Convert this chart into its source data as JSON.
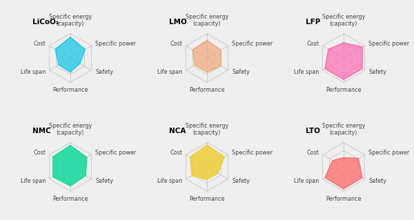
{
  "charts": [
    {
      "title": "LiCoO₂",
      "fill_color": "#1EC8E8",
      "fill_alpha": 0.75,
      "values": [
        0.85,
        0.7,
        0.45,
        0.58,
        0.55,
        0.72
      ],
      "col": 0,
      "row": 0
    },
    {
      "title": "LMO",
      "fill_color": "#F0A878",
      "fill_alpha": 0.68,
      "values": [
        0.72,
        0.65,
        0.65,
        0.58,
        0.58,
        0.68
      ],
      "col": 1,
      "row": 0
    },
    {
      "title": "LFP",
      "fill_color": "#FF6EB4",
      "fill_alpha": 0.72,
      "values": [
        0.62,
        0.9,
        0.88,
        0.88,
        0.88,
        0.72
      ],
      "col": 2,
      "row": 0
    },
    {
      "title": "NMC",
      "fill_color": "#1DD9A0",
      "fill_alpha": 0.9,
      "values": [
        0.88,
        0.78,
        0.72,
        0.78,
        0.82,
        0.82
      ],
      "col": 0,
      "row": 1
    },
    {
      "title": "NCA",
      "fill_color": "#EED040",
      "fill_alpha": 0.88,
      "values": [
        0.9,
        0.82,
        0.52,
        0.52,
        0.72,
        0.8
      ],
      "col": 1,
      "row": 1
    },
    {
      "title": "LTO",
      "fill_color": "#FF7070",
      "fill_alpha": 0.78,
      "values": [
        0.38,
        0.7,
        0.88,
        0.9,
        0.88,
        0.52
      ],
      "col": 2,
      "row": 1
    }
  ],
  "grid_levels": [
    0.333,
    0.667,
    1.0
  ],
  "grid_color": "#cccccc",
  "grid_linewidth": 0.7,
  "data_linewidth": 0.8,
  "background_color": "#efefef",
  "title_fontsize": 7.5,
  "label_fontsize": 5.8,
  "cat_labels": [
    "Specific energy\n(capacity)",
    "Specific power",
    "Safety",
    "Performance",
    "Life span",
    "Cost"
  ],
  "haligns": [
    "center",
    "left",
    "left",
    "center",
    "right",
    "right"
  ],
  "valigns": [
    "bottom",
    "center",
    "center",
    "top",
    "center",
    "center"
  ]
}
